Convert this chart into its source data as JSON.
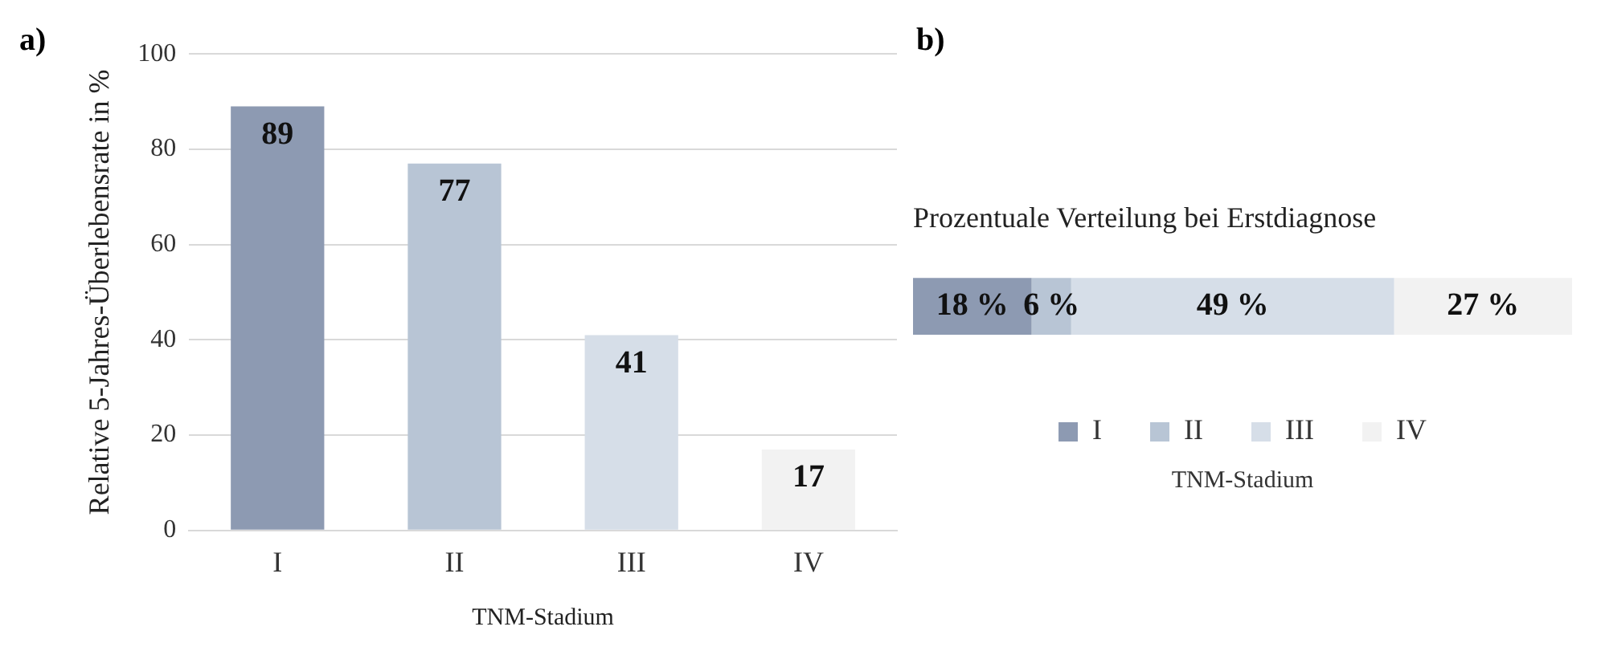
{
  "chart_data": [
    {
      "type": "bar",
      "annotations": [
        "a)"
      ],
      "ylabel": "Relative 5-Jahres-Überlebensrate in %",
      "xlabel": "TNM-Stadium",
      "categories": [
        "I",
        "II",
        "III",
        "IV"
      ],
      "values": [
        89,
        77,
        41,
        17
      ],
      "colors": [
        "#8d9ab2",
        "#b8c5d5",
        "#d6dee8",
        "#f2f2f2"
      ],
      "ylim": [
        0,
        100
      ],
      "yticks": [
        0,
        20,
        40,
        60,
        80,
        100
      ],
      "grid": "y",
      "data_labels": true,
      "legend": false
    },
    {
      "type": "bar",
      "annotations": [
        "b)"
      ],
      "title": "Prozentuale Verteilung bei Erstdiagnose",
      "orientation": "horizontal",
      "stacked": true,
      "categories": [
        null
      ],
      "tick_labels": false,
      "grid": false,
      "legend": "bottom",
      "legend_title": "TNM-Stadium",
      "series": [
        {
          "name": "I",
          "color": "#8d9ab2",
          "values": [
            18
          ],
          "value_labels": [
            "18 %"
          ]
        },
        {
          "name": "II",
          "color": "#b8c5d5",
          "values": [
            6
          ],
          "value_labels": [
            "6 %"
          ]
        },
        {
          "name": "III",
          "color": "#d6dee8",
          "values": [
            49
          ],
          "value_labels": [
            "49 %"
          ]
        },
        {
          "name": "IV",
          "color": "#f2f2f2",
          "values": [
            27
          ],
          "value_labels": [
            "27 %"
          ]
        }
      ]
    }
  ]
}
